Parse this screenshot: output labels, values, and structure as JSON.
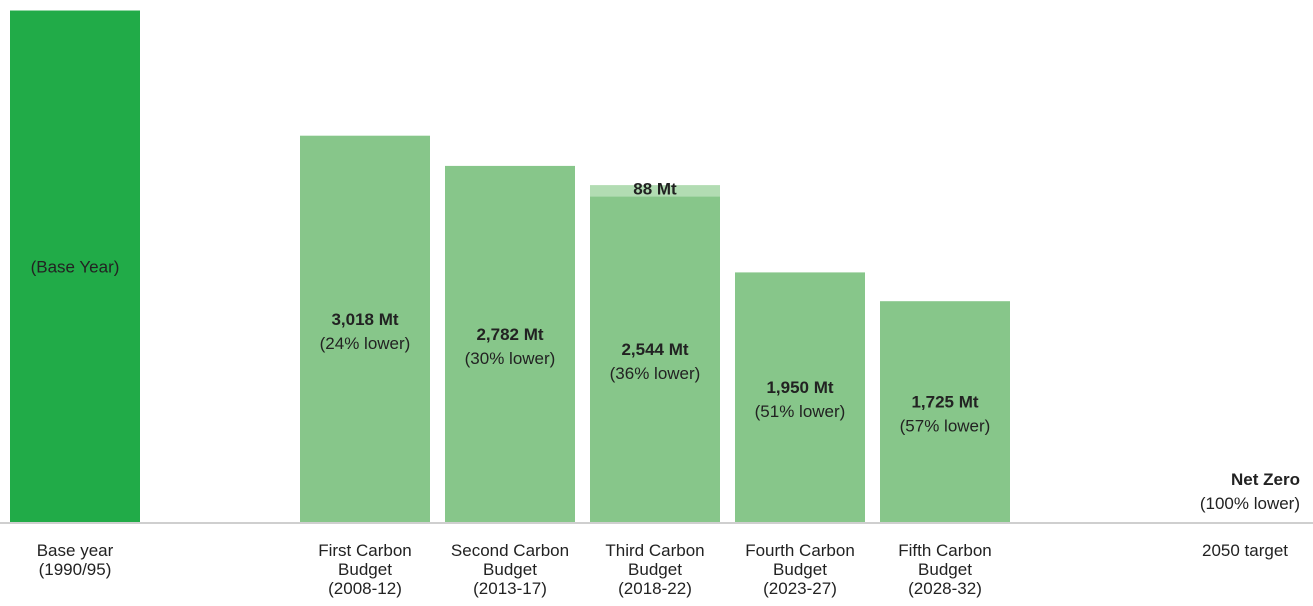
{
  "chart_data": {
    "type": "bar",
    "title": "",
    "xlabel": "",
    "ylabel": "",
    "ylim": [
      0,
      4000
    ],
    "grid": false,
    "legend": "none",
    "colors": {
      "base": "#21ab48",
      "budget": "#87c68a",
      "extra": "#b2dcb3",
      "axis": "#cfcfcf"
    },
    "bars": [
      {
        "key": "base",
        "category": [
          "Base year",
          "(1990/95)"
        ],
        "value": 3996,
        "inner": [
          "(Base Year)"
        ],
        "innerBold": false
      },
      {
        "key": "first",
        "category": [
          "First Carbon",
          "Budget",
          "(2008-12)"
        ],
        "value": 3018,
        "inner": [
          "3,018 Mt",
          "(24% lower)"
        ],
        "innerBold": true
      },
      {
        "key": "second",
        "category": [
          "Second Carbon",
          "Budget",
          "(2013-17)"
        ],
        "value": 2782,
        "inner": [
          "2,782 Mt",
          "(30% lower)"
        ],
        "innerBold": true
      },
      {
        "key": "third",
        "category": [
          "Third Carbon",
          "Budget",
          "(2018-22)"
        ],
        "value": 2544,
        "extra": 88,
        "extraLabel": "88 Mt",
        "inner": [
          "2,544 Mt",
          "(36% lower)"
        ],
        "innerBold": true
      },
      {
        "key": "fourth",
        "category": [
          "Fourth Carbon",
          "Budget",
          "(2023-27)"
        ],
        "value": 1950,
        "inner": [
          "1,950 Mt",
          "(51% lower)"
        ],
        "innerBold": true
      },
      {
        "key": "fifth",
        "category": [
          "Fifth Carbon",
          "Budget",
          "(2028-32)"
        ],
        "value": 1725,
        "inner": [
          "1,725 Mt",
          "(57% lower)"
        ],
        "innerBold": true
      },
      {
        "key": "netzero",
        "category": [
          "2050 target"
        ],
        "value": 0,
        "inner": [
          "Net Zero",
          "(100% lower)"
        ],
        "innerBold": true
      }
    ]
  }
}
